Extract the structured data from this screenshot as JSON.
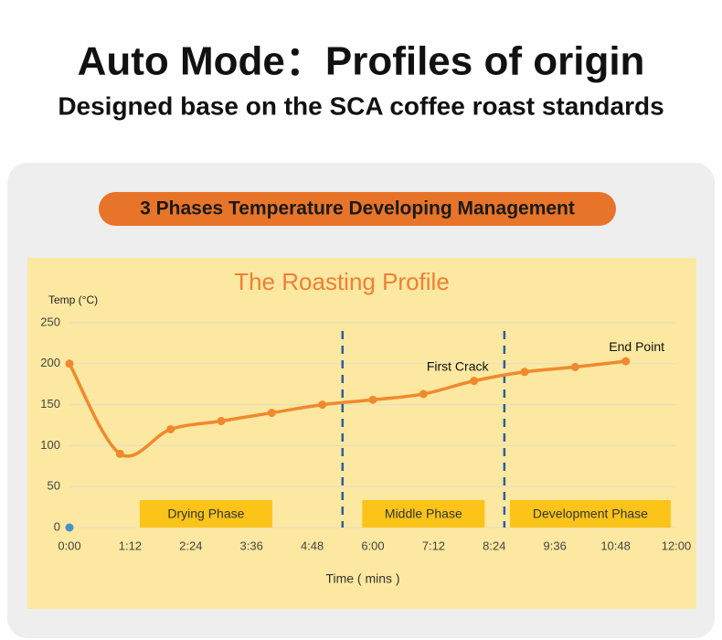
{
  "header": {
    "title": "Auto Mode：Profiles of origin",
    "subtitle": "Designed base on the SCA coffee roast standards",
    "badge": "3 Phases Temperature Developing Management"
  },
  "chart_data": {
    "type": "line",
    "title": "The Roasting Profile",
    "y_label": "Temp (°C)",
    "x_label": "Time ( mins )",
    "x": [
      0,
      1,
      2,
      3,
      4,
      5,
      6,
      7,
      8,
      9,
      10,
      11
    ],
    "series": [
      {
        "name": "Temperature",
        "color": "#f0892d",
        "values": [
          200,
          90,
          120,
          130,
          140,
          150,
          156,
          163,
          179,
          190,
          196,
          203
        ]
      }
    ],
    "annotations": [
      null,
      null,
      null,
      null,
      null,
      null,
      null,
      null,
      "First Crack",
      null,
      null,
      "End Point"
    ],
    "phase_boundaries": [
      5.4,
      8.6
    ],
    "phases": [
      "Drying Phase",
      "Middle Phase",
      "Development Phase"
    ],
    "xlim": [
      0,
      12
    ],
    "ylim": [
      0,
      250
    ],
    "xticks": [
      {
        "value": 0,
        "label": "0:00"
      },
      {
        "value": 1.2,
        "label": "1:12"
      },
      {
        "value": 2.4,
        "label": "2:24"
      },
      {
        "value": 3.6,
        "label": "3:36"
      },
      {
        "value": 4.8,
        "label": "4:48"
      },
      {
        "value": 6,
        "label": "6:00"
      },
      {
        "value": 7.2,
        "label": "7:12"
      },
      {
        "value": 8.4,
        "label": "8:24"
      },
      {
        "value": 9.6,
        "label": "9:36"
      },
      {
        "value": 10.8,
        "label": "10:48"
      },
      {
        "value": 12,
        "label": "12:00"
      }
    ],
    "yticks": [
      0,
      50,
      100,
      150,
      200,
      250
    ],
    "grid": true
  }
}
